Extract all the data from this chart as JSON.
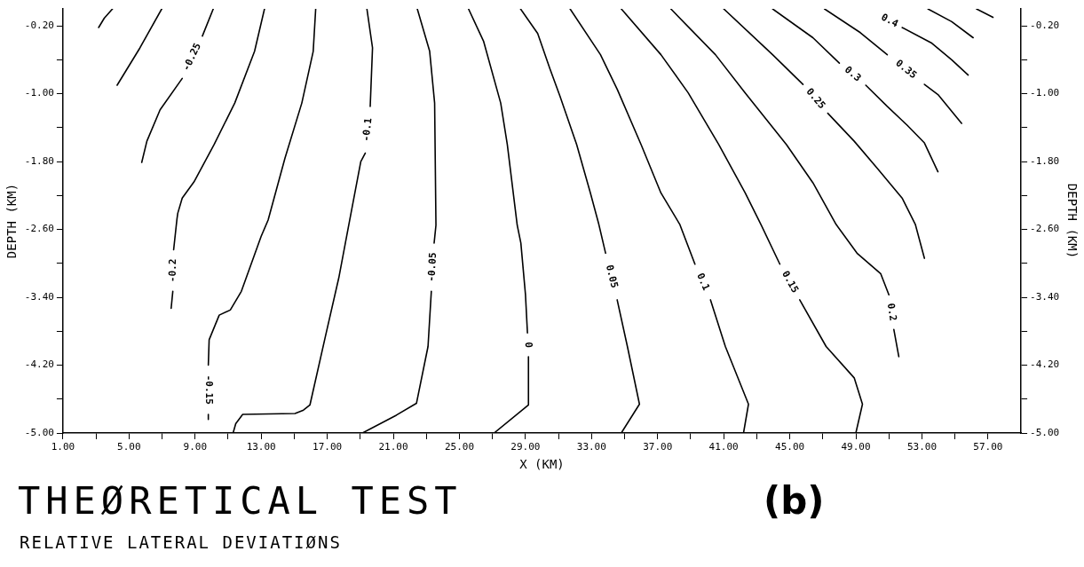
{
  "chart_data": {
    "type": "line",
    "title": "THEØRETICAL TEST",
    "subtitle": "RELATIVE LATERAL DEVIATIØNS",
    "xlabel": "X (KM)",
    "ylabel": "DEPTH (KM)",
    "y2label": "DEPTH (KM)",
    "annotations": [
      "(b)"
    ],
    "xlim": [
      1,
      59
    ],
    "ylim": [
      -5,
      0
    ],
    "y2lim": [
      -5,
      0
    ],
    "xticks": [
      {
        "value": 1,
        "label": "1.00"
      },
      {
        "value": 3,
        "label": null
      },
      {
        "value": 5,
        "label": "5.00"
      },
      {
        "value": 7,
        "label": null
      },
      {
        "value": 9,
        "label": "9.00"
      },
      {
        "value": 11,
        "label": null
      },
      {
        "value": 13,
        "label": "13.00"
      },
      {
        "value": 15,
        "label": null
      },
      {
        "value": 17,
        "label": "17.00"
      },
      {
        "value": 19,
        "label": null
      },
      {
        "value": 21,
        "label": "21.00"
      },
      {
        "value": 23,
        "label": null
      },
      {
        "value": 25,
        "label": "25.00"
      },
      {
        "value": 27,
        "label": null
      },
      {
        "value": 29,
        "label": "29.00"
      },
      {
        "value": 31,
        "label": null
      },
      {
        "value": 33,
        "label": "33.00"
      },
      {
        "value": 35,
        "label": null
      },
      {
        "value": 37,
        "label": "37.00"
      },
      {
        "value": 39,
        "label": null
      },
      {
        "value": 41,
        "label": "41.00"
      },
      {
        "value": 43,
        "label": null
      },
      {
        "value": 45,
        "label": "45.00"
      },
      {
        "value": 47,
        "label": null
      },
      {
        "value": 49,
        "label": "49.00"
      },
      {
        "value": 51,
        "label": null
      },
      {
        "value": 53,
        "label": "53.00"
      },
      {
        "value": 55,
        "label": null
      },
      {
        "value": 57,
        "label": "57.00"
      }
    ],
    "yticks": [
      {
        "value": -0.2,
        "label": "-0.20"
      },
      {
        "value": -0.6,
        "label": null
      },
      {
        "value": -1,
        "label": "-1.00"
      },
      {
        "value": -1.4,
        "label": null
      },
      {
        "value": -1.8,
        "label": "-1.80"
      },
      {
        "value": -2.2,
        "label": null
      },
      {
        "value": -2.6,
        "label": "-2.60"
      },
      {
        "value": -3,
        "label": null
      },
      {
        "value": -3.4,
        "label": "-3.40"
      },
      {
        "value": -3.8,
        "label": null
      },
      {
        "value": -4.2,
        "label": "-4.20"
      },
      {
        "value": -4.6,
        "label": null
      },
      {
        "value": -5,
        "label": "-5.00"
      }
    ],
    "y2ticks": [
      {
        "value": -0.2,
        "label": "-0.20"
      },
      {
        "value": -0.6,
        "label": null
      },
      {
        "value": -1,
        "label": "-1.00"
      },
      {
        "value": -1.4,
        "label": null
      },
      {
        "value": -1.8,
        "label": "-1.80"
      },
      {
        "value": -2.2,
        "label": null
      },
      {
        "value": -2.6,
        "label": "-2.60"
      },
      {
        "value": -3,
        "label": null
      },
      {
        "value": -3.4,
        "label": "-3.40"
      },
      {
        "value": -3.8,
        "label": null
      },
      {
        "value": -4.2,
        "label": "-4.20"
      },
      {
        "value": -4.6,
        "label": null
      },
      {
        "value": -5,
        "label": "-5.00"
      }
    ],
    "legend": false,
    "marker": "none",
    "line_style": "solid",
    "series": [
      {
        "color": "#000000",
        "x": [
          4.0,
          3.5,
          3.16
        ],
        "values": [
          0,
          -0.11,
          -0.22
        ]
      },
      {
        "color": "#000000",
        "x": [
          6.98,
          5.66,
          4.28
        ],
        "values": [
          0,
          -0.46,
          -0.9
        ]
      },
      {
        "name": "-0.25",
        "color": "#000000",
        "x": [
          10.1,
          9.44,
          null,
          8.22,
          6.88,
          6.08,
          5.77
        ],
        "values": [
          0,
          -0.32,
          null,
          -0.82,
          -1.19,
          -1.56,
          -1.81
        ]
      },
      {
        "name": "-0.2",
        "color": "#000000",
        "x": [
          13.2,
          12.6,
          11.4,
          10.15,
          8.93,
          8.22,
          7.95,
          7.9,
          7.7,
          null,
          7.65,
          7.55
        ],
        "values": [
          0,
          -0.5,
          -1.11,
          -1.6,
          -2.04,
          -2.23,
          -2.41,
          -2.48,
          -2.84,
          null,
          -3.33,
          -3.53
        ]
      },
      {
        "name": "-0.15",
        "color": "#000000",
        "x": [
          16.3,
          16.15,
          15.46,
          14.44,
          13.42,
          13.0,
          11.8,
          11.13,
          10.46,
          9.85,
          9.8,
          null,
          9.8,
          9.8
        ],
        "values": [
          0,
          -0.5,
          -1.11,
          -1.76,
          -2.49,
          -2.68,
          -3.33,
          -3.55,
          -3.61,
          -3.9,
          -4.2,
          null,
          -4.78,
          -4.84
        ]
      },
      {
        "name": "-0.1",
        "color": "#000000",
        "x": [
          19.4,
          19.74,
          19.6,
          null,
          19.3,
          19.03,
          18.3,
          17.7,
          16.9,
          15.95,
          15.56,
          15.05,
          11.88,
          11.46,
          11.3
        ],
        "values": [
          0,
          -0.46,
          -1.15,
          null,
          -1.7,
          -1.8,
          -2.55,
          -3.17,
          -3.85,
          -4.67,
          -4.73,
          -4.77,
          -4.78,
          -4.89,
          -5
        ]
      },
      {
        "name": "-0.05",
        "color": "#000000",
        "x": [
          22.45,
          23.2,
          23.5,
          23.58,
          23.47,
          null,
          23.3,
          23.1,
          22.4,
          21.18,
          19.13
        ],
        "values": [
          0,
          -0.5,
          -1.11,
          -2.55,
          -2.76,
          null,
          -3.33,
          -3.98,
          -4.65,
          -4.79,
          -5
        ]
      },
      {
        "name": "0",
        "color": "#000000",
        "x": [
          25.55,
          26.46,
          27.5,
          27.9,
          28.5,
          28.72,
          29.0,
          29.12,
          null,
          29.18,
          29.18,
          27.1
        ],
        "values": [
          0,
          -0.38,
          -1.11,
          -1.6,
          -2.55,
          -2.76,
          -3.37,
          -3.82,
          null,
          -4.1,
          -4.67,
          -5
        ]
      },
      {
        "name": "0.05",
        "color": "#000000",
        "x": [
          28.7,
          29.74,
          30.47,
          31.09,
          32.1,
          32.93,
          33.44,
          33.85,
          null,
          34.55,
          35.17,
          35.9,
          34.8
        ],
        "values": [
          0,
          -0.29,
          -0.7,
          -1.03,
          -1.6,
          -2.17,
          -2.54,
          -2.88,
          null,
          -3.43,
          -3.98,
          -4.66,
          -5
        ]
      },
      {
        "name": "0.1",
        "color": "#000000",
        "x": [
          31.7,
          33.54,
          34.56,
          36.0,
          37.2,
          38.34,
          39.26,
          null,
          40.2,
          41.1,
          42.5,
          42.2
        ],
        "values": [
          0,
          -0.54,
          -0.95,
          -1.6,
          -2.17,
          -2.54,
          -3.01,
          null,
          -3.43,
          -3.98,
          -4.66,
          -5
        ]
      },
      {
        "name": "0.15",
        "color": "#000000",
        "x": [
          34.8,
          37.2,
          38.85,
          40.7,
          42.3,
          43.25,
          44.4,
          null,
          45.6,
          47.2,
          48.9,
          49.4,
          49.0
        ],
        "values": [
          0,
          -0.54,
          -0.99,
          -1.6,
          -2.17,
          -2.54,
          -3.01,
          null,
          -3.43,
          -3.98,
          -4.35,
          -4.66,
          -5
        ]
      },
      {
        "name": "0.2",
        "color": "#000000",
        "x": [
          37.8,
          40.5,
          42.3,
          44.8,
          46.4,
          47.8,
          49.07,
          50.5,
          51.0,
          null,
          51.3,
          51.6
        ],
        "values": [
          0,
          -0.54,
          -0.99,
          -1.6,
          -2.05,
          -2.54,
          -2.88,
          -3.12,
          -3.37,
          null,
          -3.78,
          -4.1
        ]
      },
      {
        "name": "0.25",
        "color": "#000000",
        "x": [
          41.0,
          43.96,
          45.8,
          null,
          47.3,
          48.9,
          50.3,
          51.8,
          52.6,
          53.15
        ],
        "values": [
          0,
          -0.54,
          -0.89,
          null,
          -1.23,
          -1.56,
          -1.88,
          -2.23,
          -2.54,
          -2.94
        ]
      },
      {
        "name": "0.3",
        "color": "#000000",
        "x": [
          43.96,
          46.4,
          48.0,
          null,
          49.6,
          50.9,
          52.1,
          53.15,
          53.97
        ],
        "values": [
          0,
          -0.34,
          -0.64,
          null,
          -0.9,
          -1.15,
          -1.37,
          -1.58,
          -1.92
        ]
      },
      {
        "name": "0.35",
        "color": "#000000",
        "x": [
          47.1,
          49.27,
          50.9,
          null,
          53.15,
          53.97,
          55.4
        ],
        "values": [
          0,
          -0.28,
          -0.54,
          null,
          -0.89,
          -1.01,
          -1.35
        ]
      },
      {
        "name": "0.4",
        "color": "#000000",
        "x": [
          null,
          51.8,
          53.56,
          54.8,
          55.8
        ],
        "values": [
          null,
          -0.22,
          -0.4,
          -0.6,
          -0.78
        ]
      },
      {
        "color": "#000000",
        "x": [
          53.36,
          54.8,
          56.1
        ],
        "values": [
          0,
          -0.15,
          -0.34
        ]
      },
      {
        "color": "#000000",
        "x": [
          56.3,
          57.3
        ],
        "values": [
          0,
          -0.1
        ]
      }
    ]
  }
}
